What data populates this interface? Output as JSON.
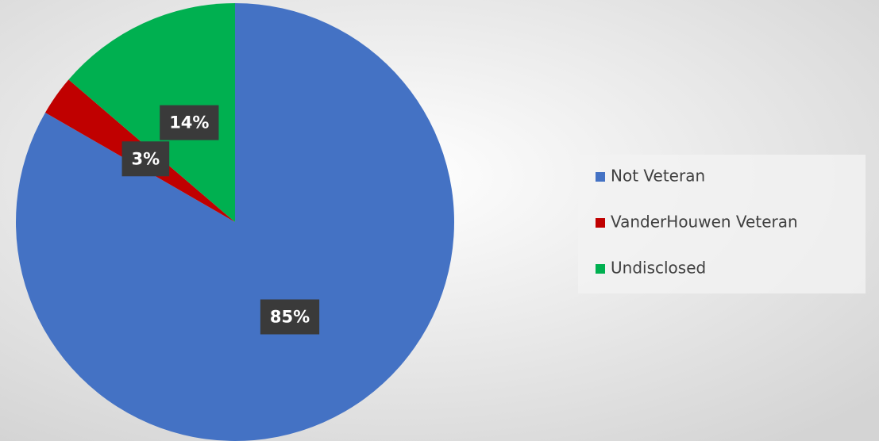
{
  "chart_data": {
    "type": "pie",
    "categories": [
      "Not Veteran",
      "VanderHouwen Veteran",
      "Undisclosed"
    ],
    "values": [
      85,
      3,
      14
    ],
    "value_labels": [
      "85%",
      "3%",
      "14%"
    ],
    "colors": [
      "#4472c4",
      "#c00000",
      "#00b050"
    ],
    "legend": "right"
  }
}
